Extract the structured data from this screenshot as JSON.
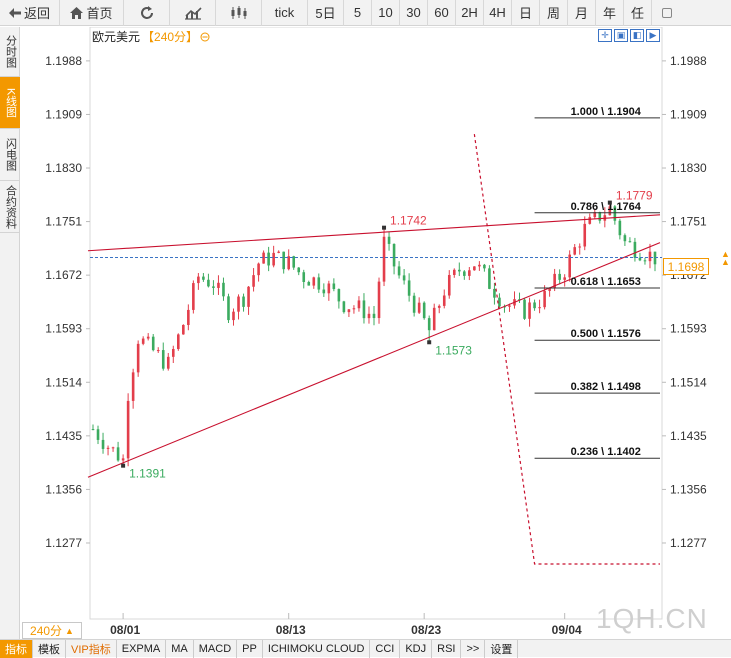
{
  "toolbar": {
    "back_label": "返回",
    "home_label": "首页",
    "periods": [
      "tick",
      "5日",
      "5",
      "10",
      "30",
      "60",
      "2H",
      "4H",
      "日",
      "周",
      "月",
      "年",
      "任"
    ]
  },
  "side_tabs": [
    {
      "label": "分时图",
      "active": false
    },
    {
      "label": "K线图",
      "active": true
    },
    {
      "label": "闪电图",
      "active": false
    },
    {
      "label": "合约资料",
      "active": false
    }
  ],
  "chart_title": {
    "symbol": "欧元美元",
    "period": "【240分】",
    "icon": "minus-circle-icon"
  },
  "last_price": "1.1698",
  "period_selector": "240分",
  "watermark": "1QH.CN",
  "bottom_tabs": [
    {
      "label": "指标",
      "active": true,
      "vip": false
    },
    {
      "label": "模板",
      "active": false,
      "vip": false
    },
    {
      "label": "VIP指标",
      "active": false,
      "vip": true
    },
    {
      "label": "EXPMA",
      "active": false,
      "vip": false
    },
    {
      "label": "MA",
      "active": false,
      "vip": false
    },
    {
      "label": "MACD",
      "active": false,
      "vip": false
    },
    {
      "label": "PP",
      "active": false,
      "vip": false
    },
    {
      "label": "ICHIMOKU CLOUD",
      "active": false,
      "vip": false
    },
    {
      "label": "CCI",
      "active": false,
      "vip": false
    },
    {
      "label": "KDJ",
      "active": false,
      "vip": false
    },
    {
      "label": "RSI",
      "active": false,
      "vip": false
    },
    {
      "label": ">>",
      "active": false,
      "vip": false
    },
    {
      "label": "设置",
      "active": false,
      "vip": false
    }
  ],
  "colors": {
    "up": "#e33e4b",
    "down": "#3bab5f",
    "accent": "#f39800",
    "trend": "#c8102e",
    "fib": "#8b0000",
    "price_line": "#3a73c4"
  },
  "chart_data": {
    "type": "candlestick",
    "y_ticks": [
      "1.1988",
      "1.1909",
      "1.1830",
      "1.1751",
      "1.1672",
      "1.1593",
      "1.1514",
      "1.1435",
      "1.1356",
      "1.1277"
    ],
    "ylim": [
      1.1246,
      1.2007
    ],
    "x_labels": [
      "08/01",
      "08/13",
      "08/23",
      "09/04"
    ],
    "x_label_index": [
      6,
      39,
      66,
      94
    ],
    "candle_count": 113,
    "annotations": [
      {
        "text": "1.1391",
        "value": 1.1391,
        "index": 6,
        "color": "green"
      },
      {
        "text": "1.1742",
        "value": 1.1742,
        "index": 58,
        "color": "red"
      },
      {
        "text": "1.1573",
        "value": 1.1573,
        "index": 67,
        "color": "green"
      },
      {
        "text": "1.1779",
        "value": 1.1779,
        "index": 103,
        "color": "red"
      }
    ],
    "fib_levels": [
      {
        "text": "1.000 \\ 1.1904",
        "value": 1.1904
      },
      {
        "text": "0.786 \\ 1.1764",
        "value": 1.1764
      },
      {
        "text": "0.618 \\ 1.1653",
        "value": 1.1653
      },
      {
        "text": "0.500 \\ 1.1576",
        "value": 1.1576
      },
      {
        "text": "0.382 \\ 1.1498",
        "value": 1.1498
      },
      {
        "text": "0.236 \\ 1.1402",
        "value": 1.1402
      }
    ],
    "last_price": 1.1698,
    "trendlines": [
      {
        "from_index": -1,
        "from_value": 1.1708,
        "to_index": 113,
        "to_value": 1.1761
      },
      {
        "from_index": -1,
        "from_value": 1.1374,
        "to_index": 113,
        "to_value": 1.172
      }
    ]
  }
}
